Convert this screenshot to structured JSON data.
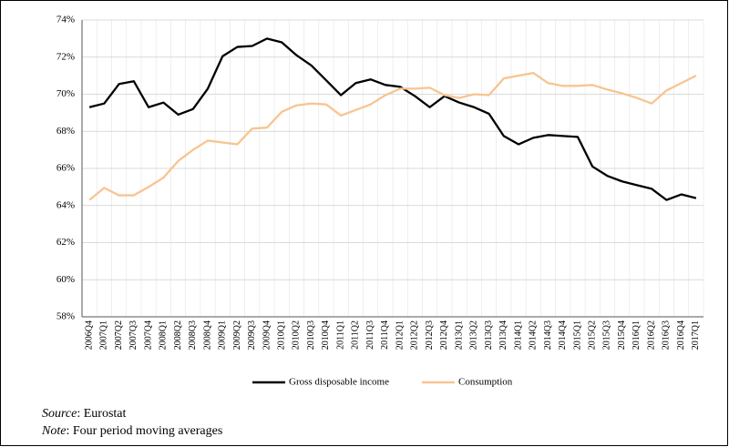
{
  "chart_data": {
    "type": "line",
    "categories": [
      "2006Q4",
      "2007Q1",
      "2007Q2",
      "2007Q3",
      "2007Q4",
      "2008Q1",
      "2008Q2",
      "2008Q3",
      "2008Q4",
      "2009Q1",
      "2009Q2",
      "2009Q3",
      "2009Q4",
      "2010Q1",
      "2010Q2",
      "2010Q3",
      "2010Q4",
      "2011Q1",
      "2011Q2",
      "2011Q3",
      "2011Q4",
      "2012Q1",
      "2012Q2",
      "2012Q3",
      "2012Q4",
      "2013Q1",
      "2013Q2",
      "2013Q3",
      "2013Q4",
      "2014Q1",
      "2014Q2",
      "2014Q3",
      "2014Q4",
      "2015Q1",
      "2015Q2",
      "2015Q3",
      "2015Q4",
      "2016Q1",
      "2016Q2",
      "2016Q3",
      "2016Q4",
      "2017Q1"
    ],
    "series": [
      {
        "name": "Gross disposable income",
        "color": "#000000",
        "values": [
          69.3,
          69.5,
          70.55,
          70.7,
          69.3,
          69.55,
          68.9,
          69.2,
          70.3,
          72.05,
          72.55,
          72.6,
          73.0,
          72.8,
          72.1,
          71.55,
          70.75,
          69.95,
          70.6,
          70.8,
          70.5,
          70.4,
          69.9,
          69.3,
          69.9,
          69.55,
          69.3,
          68.95,
          67.75,
          67.3,
          67.65,
          67.8,
          67.75,
          67.7,
          66.1,
          65.6,
          65.3,
          65.1,
          64.9,
          64.3,
          64.6,
          64.4
        ]
      },
      {
        "name": "Consumption",
        "color": "#f8c491",
        "values": [
          64.3,
          64.95,
          64.55,
          64.55,
          65.0,
          65.5,
          66.4,
          67.0,
          67.5,
          67.4,
          67.3,
          68.15,
          68.2,
          69.05,
          69.4,
          69.5,
          69.45,
          68.85,
          69.15,
          69.45,
          69.95,
          70.3,
          70.3,
          70.35,
          69.95,
          69.8,
          70.0,
          69.95,
          70.85,
          71.0,
          71.15,
          70.6,
          70.45,
          70.45,
          70.5,
          70.25,
          70.05,
          69.8,
          69.5,
          70.2,
          70.6,
          71.0
        ]
      }
    ],
    "ylim": [
      58,
      74
    ],
    "yticks": [
      {
        "value": 58,
        "label": "58%"
      },
      {
        "value": 60,
        "label": "60%"
      },
      {
        "value": 62,
        "label": "62%"
      },
      {
        "value": 64,
        "label": "64%"
      },
      {
        "value": 66,
        "label": "66%"
      },
      {
        "value": 68,
        "label": "68%"
      },
      {
        "value": 70,
        "label": "70%"
      },
      {
        "value": 72,
        "label": "72%"
      },
      {
        "value": 74,
        "label": "74%"
      }
    ],
    "grid": true,
    "legend": "bottom",
    "notes": [
      {
        "label": "Source",
        "text": ": Eurostat"
      },
      {
        "label": "Note",
        "text": ": Four period moving averages"
      }
    ]
  }
}
